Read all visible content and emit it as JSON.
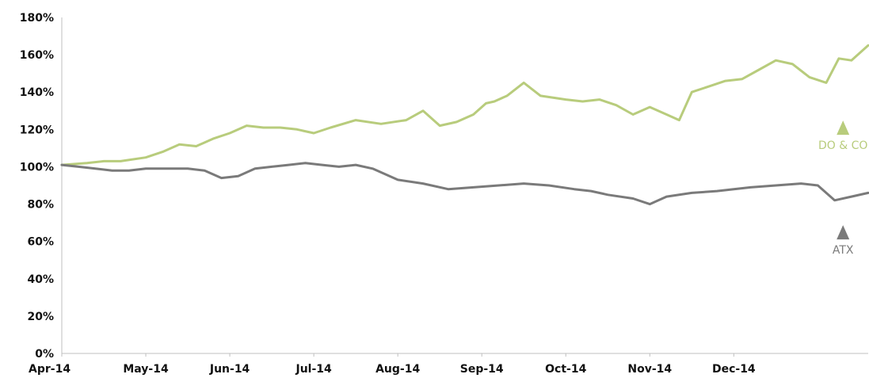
{
  "chart_data": {
    "type": "line",
    "title": "",
    "xlabel": "",
    "ylabel": "",
    "ylim": [
      0,
      180
    ],
    "y_ticks": [
      "0%",
      "20%",
      "40%",
      "60%",
      "80%",
      "100%",
      "120%",
      "140%",
      "160%",
      "180%"
    ],
    "y_tick_values": [
      0,
      20,
      40,
      60,
      80,
      100,
      120,
      140,
      160,
      180
    ],
    "x_ticks": [
      "Apr-14",
      "May-14",
      "Jun-14",
      "Jul-14",
      "Aug-14",
      "Sep-14",
      "Oct-14",
      "Nov-14",
      "Dec-14"
    ],
    "x_range": [
      0,
      9.6
    ],
    "grid": false,
    "legend": "none",
    "series": [
      {
        "name": "DO & CO",
        "color": "#b8cc7c",
        "label_x": 9.3,
        "label_y": 112,
        "x": [
          0,
          0.3,
          0.5,
          0.7,
          1.0,
          1.2,
          1.4,
          1.6,
          1.8,
          2.0,
          2.2,
          2.4,
          2.6,
          2.8,
          3.0,
          3.2,
          3.5,
          3.8,
          4.1,
          4.3,
          4.5,
          4.7,
          4.9,
          5.05,
          5.15,
          5.3,
          5.5,
          5.7,
          6.0,
          6.2,
          6.4,
          6.6,
          6.8,
          7.0,
          7.2,
          7.35,
          7.5,
          7.7,
          7.9,
          8.1,
          8.3,
          8.5,
          8.7,
          8.9,
          9.1,
          9.25,
          9.4,
          9.6
        ],
        "y": [
          101,
          102,
          103,
          103,
          105,
          108,
          112,
          111,
          115,
          118,
          122,
          121,
          121,
          120,
          118,
          121,
          125,
          123,
          125,
          130,
          122,
          124,
          128,
          134,
          135,
          138,
          145,
          138,
          136,
          135,
          136,
          133,
          128,
          132,
          128,
          125,
          140,
          143,
          146,
          147,
          152,
          157,
          155,
          148,
          145,
          158,
          157,
          165
        ]
      },
      {
        "name": "ATX",
        "color": "#7a7a7a",
        "label_x": 9.3,
        "label_y": 56,
        "x": [
          0,
          0.2,
          0.4,
          0.6,
          0.8,
          1.0,
          1.2,
          1.5,
          1.7,
          1.9,
          2.1,
          2.3,
          2.5,
          2.7,
          2.9,
          3.1,
          3.3,
          3.5,
          3.7,
          4.0,
          4.3,
          4.6,
          4.9,
          5.2,
          5.5,
          5.8,
          6.1,
          6.3,
          6.5,
          6.8,
          7.0,
          7.2,
          7.5,
          7.8,
          8.0,
          8.2,
          8.5,
          8.8,
          9.0,
          9.2,
          9.4,
          9.6
        ],
        "y": [
          101,
          100,
          99,
          98,
          98,
          99,
          99,
          99,
          98,
          94,
          95,
          99,
          100,
          101,
          102,
          101,
          100,
          101,
          99,
          93,
          91,
          88,
          89,
          90,
          91,
          90,
          88,
          87,
          85,
          83,
          80,
          84,
          86,
          87,
          88,
          89,
          90,
          91,
          90,
          82,
          84,
          86
        ]
      }
    ]
  }
}
